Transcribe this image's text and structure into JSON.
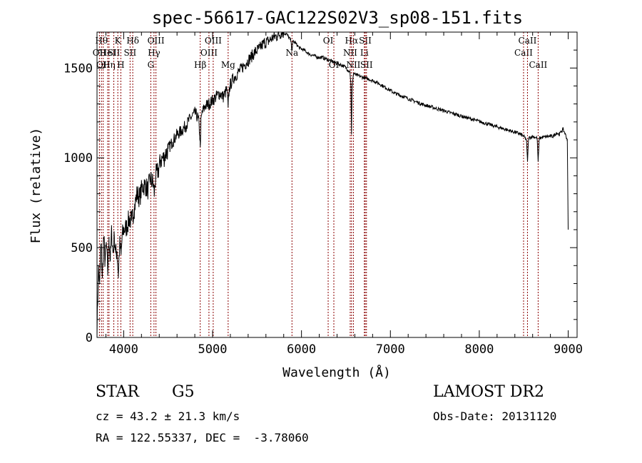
{
  "chart_data": {
    "type": "line",
    "title": "spec-56617-GAC122S02V3_sp08-151.fits",
    "xlabel": "Wavelength (Å)",
    "ylabel": "Flux (relative)",
    "xlim": [
      3700,
      9100
    ],
    "ylim": [
      0,
      1700
    ],
    "xticks": [
      4000,
      5000,
      6000,
      7000,
      8000,
      9000
    ],
    "yticks": [
      0,
      500,
      1000,
      1500
    ],
    "grid": false,
    "line_color": "#000000",
    "marker_color": "#8b0000",
    "series": [
      {
        "x": [
          3700,
          3715,
          3730,
          3745,
          3760,
          3775,
          3790,
          3805,
          3820,
          3835,
          3850,
          3865,
          3880,
          3895,
          3910,
          3925,
          3940,
          3955,
          3970,
          3985,
          4000,
          4030,
          4060,
          4090,
          4120,
          4150,
          4180,
          4210,
          4240,
          4270,
          4300,
          4330,
          4345,
          4360,
          4390,
          4420,
          4450,
          4500,
          4550,
          4600,
          4650,
          4700,
          4750,
          4800,
          4840,
          4855,
          4861,
          4868,
          4880,
          4920,
          4960,
          5000,
          5040,
          5080,
          5120,
          5160,
          5175,
          5183,
          5195,
          5230,
          5280,
          5330,
          5380,
          5430,
          5480,
          5530,
          5580,
          5630,
          5680,
          5730,
          5780,
          5830,
          5860,
          5880,
          5893,
          5905,
          5930,
          5980,
          6030,
          6080,
          6130,
          6180,
          6230,
          6280,
          6330,
          6380,
          6430,
          6480,
          6520,
          6545,
          6555,
          6563,
          6570,
          6585,
          6620,
          6680,
          6750,
          6850,
          6950,
          7050,
          7150,
          7250,
          7350,
          7450,
          7550,
          7650,
          7750,
          7850,
          7950,
          8050,
          8150,
          8250,
          8350,
          8450,
          8500,
          8530,
          8542,
          8555,
          8600,
          8650,
          8662,
          8675,
          8720,
          8780,
          8830,
          8870,
          8900,
          8940,
          8970,
          8990,
          9000
        ],
        "y": [
          20,
          380,
          300,
          520,
          330,
          560,
          420,
          520,
          360,
          560,
          430,
          590,
          470,
          560,
          470,
          480,
          350,
          520,
          460,
          570,
          600,
          610,
          660,
          650,
          720,
          800,
          780,
          840,
          850,
          820,
          880,
          860,
          800,
          900,
          930,
          990,
          1000,
          1050,
          1090,
          1130,
          1150,
          1180,
          1220,
          1250,
          1220,
          1130,
          1060,
          1190,
          1250,
          1290,
          1300,
          1320,
          1340,
          1360,
          1340,
          1380,
          1280,
          1360,
          1400,
          1440,
          1470,
          1500,
          1530,
          1560,
          1590,
          1610,
          1640,
          1650,
          1670,
          1680,
          1700,
          1690,
          1670,
          1650,
          1600,
          1650,
          1640,
          1610,
          1600,
          1580,
          1570,
          1560,
          1560,
          1550,
          1540,
          1530,
          1520,
          1510,
          1490,
          1480,
          1420,
          1130,
          1400,
          1470,
          1460,
          1450,
          1440,
          1420,
          1390,
          1360,
          1340,
          1320,
          1300,
          1285,
          1270,
          1255,
          1240,
          1225,
          1210,
          1195,
          1180,
          1165,
          1150,
          1135,
          1120,
          1100,
          980,
          1110,
          1120,
          1110,
          980,
          1110,
          1115,
          1120,
          1120,
          1140,
          1130,
          1160,
          1130,
          1100,
          600
        ]
      }
    ],
    "markers": [
      {
        "x": 3750,
        "row": 1,
        "label": "Hθ"
      },
      {
        "x": 3727,
        "row": 2,
        "label": "OII"
      },
      {
        "x": 3770,
        "row": 3,
        "label": "OII"
      },
      {
        "x": 3835,
        "row": 3,
        "label": "Hη"
      },
      {
        "x": 3820,
        "row": 2,
        "label": "HeI"
      },
      {
        "x": 3889,
        "row": 2,
        "label": "SII"
      },
      {
        "x": 3934,
        "row": 1,
        "label": "K"
      },
      {
        "x": 3968,
        "row": 3,
        "label": "H"
      },
      {
        "x": 4102,
        "row": 1,
        "label": "Hδ"
      },
      {
        "x": 4072,
        "row": 2,
        "label": "SII"
      },
      {
        "x": 4305,
        "row": 3,
        "label": "G"
      },
      {
        "x": 4341,
        "row": 2,
        "label": "Hγ"
      },
      {
        "x": 4363,
        "row": 1,
        "label": "OIII"
      },
      {
        "x": 4861,
        "row": 3,
        "label": "Hβ"
      },
      {
        "x": 4959,
        "row": 2,
        "label": "OIII"
      },
      {
        "x": 5007,
        "row": 1,
        "label": "OIII"
      },
      {
        "x": 5175,
        "row": 3,
        "label": "Mg"
      },
      {
        "x": 5893,
        "row": 2,
        "label": "Na"
      },
      {
        "x": 6300,
        "row": 1,
        "label": "OI"
      },
      {
        "x": 6364,
        "row": 3,
        "label": "OI"
      },
      {
        "x": 6563,
        "row": 1,
        "label": "Hα"
      },
      {
        "x": 6548,
        "row": 2,
        "label": "NII"
      },
      {
        "x": 6584,
        "row": 3,
        "label": "NII"
      },
      {
        "x": 6707,
        "row": 2,
        "label": "Li"
      },
      {
        "x": 6717,
        "row": 1,
        "label": "SII"
      },
      {
        "x": 6731,
        "row": 3,
        "label": "SII"
      },
      {
        "x": 8498,
        "row": 2,
        "label": "CaII"
      },
      {
        "x": 8542,
        "row": 1,
        "label": "CaII"
      },
      {
        "x": 8662,
        "row": 3,
        "label": "CaII"
      }
    ]
  },
  "info": {
    "class": "STAR",
    "subclass": "G5",
    "survey": "LAMOST DR2",
    "cz": "cz = 43.2 ± 21.3 km/s",
    "obs_date": "Obs-Date: 20131120",
    "radec": "RA = 122.55337, DEC =  -3.78060"
  }
}
